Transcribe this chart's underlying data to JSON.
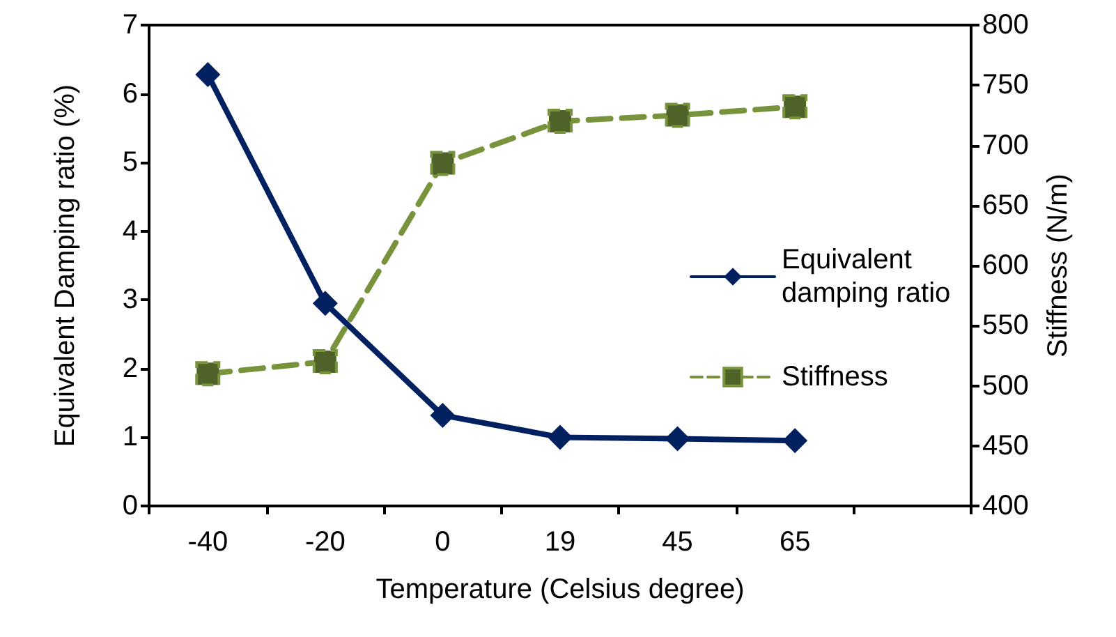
{
  "chart_data": {
    "type": "line",
    "xlabel": "Temperature (Celsius degree)",
    "ylabel": "Equivalent Damping ratio (%)",
    "y2label": "Stiffness (N/m)",
    "categories": [
      "-40",
      "-20",
      "0",
      "19",
      "45",
      "65",
      null
    ],
    "series": [
      {
        "name": "Equivalent damping ratio",
        "color": "#002060",
        "marker": "diamond",
        "line_style": "solid",
        "values": [
          6.28,
          2.95,
          1.32,
          1.0,
          0.98,
          0.95,
          null
        ]
      },
      {
        "name": "Stiffness",
        "color": "#77933c",
        "marker": "square",
        "line_style": "dashed",
        "axis": "y2",
        "values": [
          510,
          520,
          685,
          720,
          725,
          732,
          null
        ]
      }
    ],
    "ylim": [
      0,
      7
    ],
    "yticks": [
      0,
      1,
      2,
      3,
      4,
      5,
      6,
      7
    ],
    "y2lim": [
      400,
      800
    ],
    "y2ticks": [
      400,
      450,
      500,
      550,
      600,
      650,
      700,
      750,
      800
    ],
    "grid": false,
    "legend": "right"
  }
}
